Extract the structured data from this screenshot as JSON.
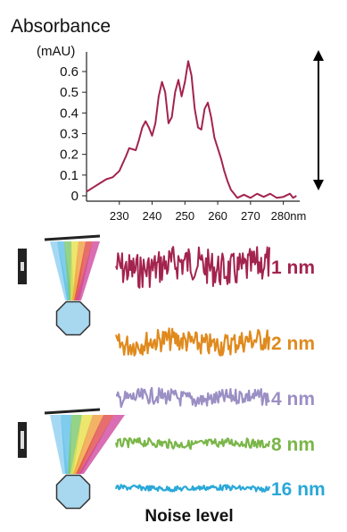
{
  "chart_data": [
    {
      "type": "line",
      "title": "",
      "ylabel": "Absorbance",
      "yunit": "(mAU)",
      "xunit": "nm",
      "xlim": [
        220,
        285
      ],
      "ylim": [
        0,
        0.7
      ],
      "xticks": [
        230,
        240,
        250,
        260,
        270,
        280
      ],
      "xtick_labels": [
        "230",
        "240",
        "250",
        "260",
        "270",
        "280nm"
      ],
      "yticks": [
        0,
        0.1,
        0.2,
        0.3,
        0.4,
        0.5,
        0.6
      ],
      "ytick_labels": [
        "0",
        "0.1",
        "0.2",
        "0.3",
        "0.4",
        "0.5",
        "0.6"
      ],
      "grid": false,
      "color": "#a3234f",
      "x": [
        220,
        222,
        224,
        226,
        228,
        230,
        232,
        233,
        235,
        236,
        237,
        238,
        239,
        240,
        241,
        242,
        243,
        244,
        245,
        246,
        247,
        248,
        249,
        250,
        251,
        252,
        253,
        254,
        255,
        256,
        257,
        258,
        259,
        260,
        261,
        262,
        263,
        264,
        265,
        266,
        268,
        270,
        272,
        274,
        276,
        278,
        280,
        282,
        283,
        284
      ],
      "y": [
        0.02,
        0.04,
        0.06,
        0.08,
        0.09,
        0.12,
        0.19,
        0.23,
        0.22,
        0.27,
        0.33,
        0.36,
        0.33,
        0.29,
        0.35,
        0.48,
        0.55,
        0.5,
        0.35,
        0.38,
        0.5,
        0.56,
        0.48,
        0.55,
        0.65,
        0.58,
        0.42,
        0.33,
        0.32,
        0.42,
        0.45,
        0.38,
        0.28,
        0.23,
        0.18,
        0.12,
        0.07,
        0.03,
        0.01,
        -0.01,
        0.005,
        -0.01,
        0.01,
        -0.005,
        0.01,
        -0.01,
        -0.005,
        0.01,
        -0.01,
        0.0
      ],
      "annotation": "double-headed arrow marking full-scale peak height"
    },
    {
      "type": "line",
      "title": "Noise level",
      "series": [
        {
          "name": "1 nm",
          "color": "#a3234f",
          "noise_amplitude": 1.0
        },
        {
          "name": "2 nm",
          "color": "#e08a1e",
          "noise_amplitude": 0.55
        },
        {
          "name": "4 nm",
          "color": "#9b8fc4",
          "noise_amplitude": 0.32
        },
        {
          "name": "8 nm",
          "color": "#7ab648",
          "noise_amplitude": 0.16
        },
        {
          "name": "16 nm",
          "color": "#2aa8d8",
          "noise_amplitude": 0.09
        }
      ]
    }
  ],
  "icons": [
    {
      "name": "narrow-slit-detector-icon",
      "slit": "narrow"
    },
    {
      "name": "wide-slit-detector-icon",
      "slit": "wide"
    }
  ],
  "arrow_color": "#000000"
}
